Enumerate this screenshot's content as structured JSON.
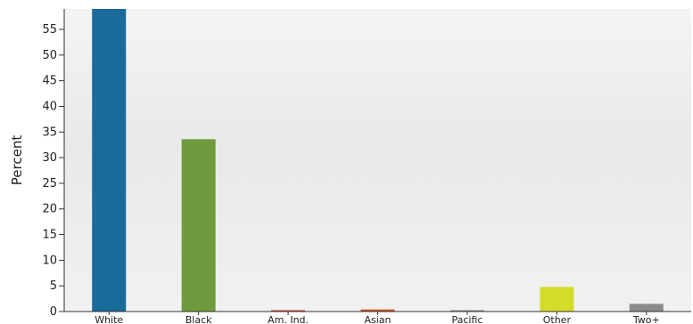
{
  "chart_data": {
    "type": "bar",
    "ylabel": "Percent",
    "xlabel": "",
    "categories": [
      "White",
      "Black",
      "Am. Ind.",
      "Asian",
      "Pacific",
      "Other",
      "Two+"
    ],
    "values": [
      59.0,
      33.6,
      0.1,
      0.4,
      0.1,
      4.8,
      1.5
    ],
    "colors": [
      "#1a6b9a",
      "#6f9a3e",
      "#c0392b",
      "#c8501e",
      "#888888",
      "#d4dc2a",
      "#8a8a8a"
    ],
    "ylim": [
      0,
      59
    ],
    "yticks": [
      0,
      5,
      10,
      15,
      20,
      25,
      30,
      35,
      40,
      45,
      50,
      55
    ],
    "grid": false
  }
}
